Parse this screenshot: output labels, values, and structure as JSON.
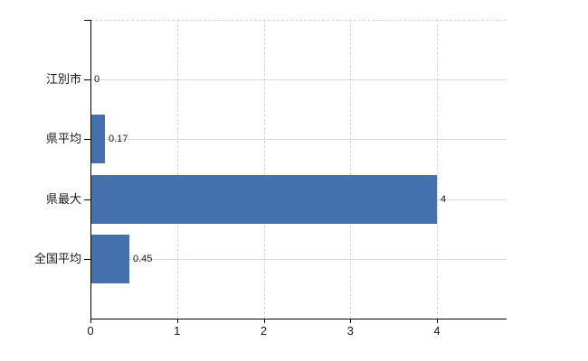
{
  "chart_data": {
    "type": "bar",
    "orientation": "horizontal",
    "title": "",
    "xlabel": "",
    "ylabel": "",
    "categories": [
      "江別市",
      "県平均",
      "県最大",
      "全国平均"
    ],
    "values": [
      0,
      0.17,
      4,
      0.45
    ],
    "value_labels": [
      "0",
      "0.17",
      "4",
      "0.45"
    ],
    "x_ticks": [
      0,
      1,
      2,
      3,
      4
    ],
    "x_tick_labels": [
      "0",
      "1",
      "2",
      "3",
      "4"
    ],
    "xlim": [
      0,
      4.8
    ],
    "grid": true,
    "legend": false,
    "colors": {
      "bar": "#4471ae",
      "axis": "#000000",
      "gridline_horizontal": "#d5ddd5",
      "gridline_vertical": "#d9d2d9",
      "plot_top_border": "#d6ced6",
      "text": "#1a1a1a",
      "background": "#ffffff"
    }
  }
}
